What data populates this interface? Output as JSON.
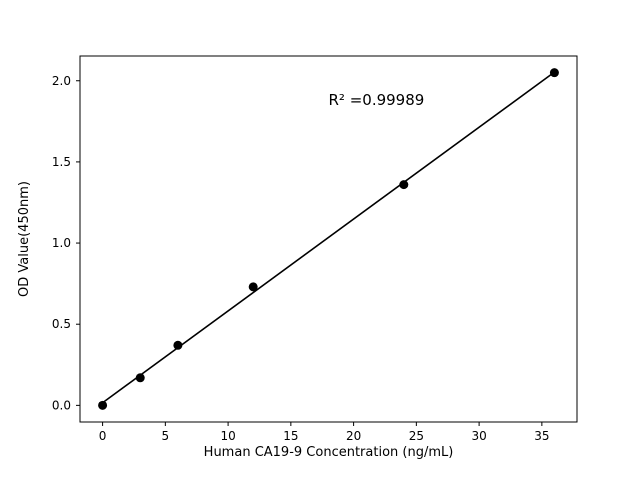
{
  "chart_data": {
    "type": "scatter",
    "title": "",
    "xlabel": "Human CA19-9 Concentration (ng/mL)",
    "ylabel": "OD Value(450nm)",
    "x": [
      0,
      3,
      6,
      12,
      24,
      36
    ],
    "y": [
      0.0,
      0.17,
      0.37,
      0.73,
      1.36,
      2.05
    ],
    "fit_line": true,
    "annotation": {
      "text": "R² =0.99989",
      "x": 18,
      "y": 1.88
    },
    "xlim": [
      -1.8,
      37.8
    ],
    "ylim": [
      -0.1025,
      2.1525
    ],
    "xticks": [
      0,
      5,
      10,
      15,
      20,
      25,
      30,
      35
    ],
    "xtick_labels": [
      "0",
      "5",
      "10",
      "15",
      "20",
      "25",
      "30",
      "35"
    ],
    "yticks": [
      0.0,
      0.5,
      1.0,
      1.5,
      2.0
    ],
    "ytick_labels": [
      "0.0",
      "0.5",
      "1.0",
      "1.5",
      "2.0"
    ],
    "grid": false,
    "legend": "none",
    "marker_color": "#000000",
    "line_color": "#000000",
    "axis_color": "#000000",
    "background": "#ffffff"
  }
}
